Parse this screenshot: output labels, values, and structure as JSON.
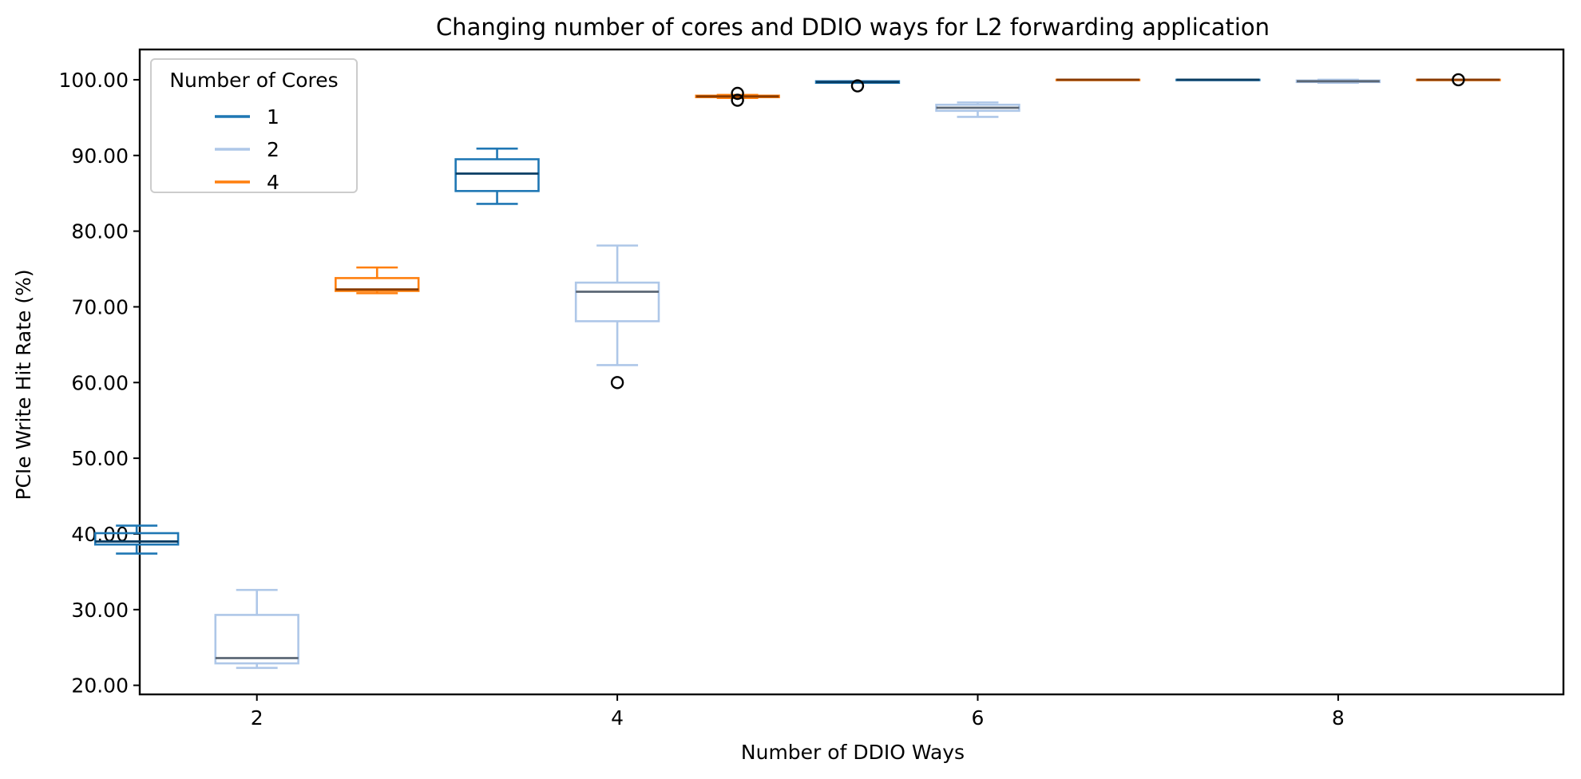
{
  "chart_data": {
    "type": "box",
    "title": "Changing number of cores and DDIO ways for L2 forwarding application",
    "xlabel": "Number of DDIO Ways",
    "ylabel": "PCIe Write Hit Rate (%)",
    "xlim": [
      1.35,
      9.25
    ],
    "ylim": [
      18.8,
      104.0
    ],
    "x_ticks": [
      "2",
      "4",
      "6",
      "8"
    ],
    "y_ticks": [
      "20.00",
      "30.00",
      "40.00",
      "50.00",
      "60.00",
      "70.00",
      "80.00",
      "90.00",
      "100.00"
    ],
    "legend": {
      "title": "Number of Cores",
      "position": "upper-left",
      "entries": [
        "1",
        "2",
        "4"
      ]
    },
    "series": [
      {
        "name": "1",
        "color": "#1f77b4",
        "median_color": "#0a3d63",
        "boxes": [
          {
            "x": 1.333,
            "whislo": 37.4,
            "q1": 38.6,
            "med": 39.0,
            "q3": 40.1,
            "whishi": 41.1,
            "fliers": []
          },
          {
            "x": 3.333,
            "whislo": 83.6,
            "q1": 85.3,
            "med": 87.6,
            "q3": 89.5,
            "whishi": 90.9,
            "fliers": []
          },
          {
            "x": 5.333,
            "whislo": 99.6,
            "q1": 99.6,
            "med": 99.7,
            "q3": 99.8,
            "whishi": 99.8,
            "fliers": [
              99.2
            ]
          },
          {
            "x": 7.333,
            "whislo": 100.0,
            "q1": 100.0,
            "med": 100.0,
            "q3": 100.0,
            "whishi": 100.0,
            "fliers": []
          }
        ]
      },
      {
        "name": "2",
        "color": "#aec7e8",
        "median_color": "#5b6775",
        "boxes": [
          {
            "x": 2.0,
            "whislo": 22.3,
            "q1": 22.9,
            "med": 23.6,
            "q3": 29.3,
            "whishi": 32.6,
            "fliers": []
          },
          {
            "x": 4.0,
            "whislo": 62.3,
            "q1": 68.1,
            "med": 72.0,
            "q3": 73.2,
            "whishi": 78.1,
            "fliers": [
              60.0
            ]
          },
          {
            "x": 6.0,
            "whislo": 95.1,
            "q1": 95.9,
            "med": 96.3,
            "q3": 96.7,
            "whishi": 97.0,
            "fliers": []
          },
          {
            "x": 8.0,
            "whislo": 99.6,
            "q1": 99.7,
            "med": 99.8,
            "q3": 99.9,
            "whishi": 100.0,
            "fliers": []
          }
        ]
      },
      {
        "name": "4",
        "color": "#ff7f0e",
        "median_color": "#8a3b00",
        "boxes": [
          {
            "x": 2.667,
            "whislo": 71.8,
            "q1": 72.1,
            "med": 72.3,
            "q3": 73.8,
            "whishi": 75.2,
            "fliers": []
          },
          {
            "x": 4.667,
            "whislo": 97.6,
            "q1": 97.7,
            "med": 97.8,
            "q3": 97.9,
            "whishi": 98.0,
            "fliers": [
              97.3,
              98.2
            ]
          },
          {
            "x": 6.667,
            "whislo": 100.0,
            "q1": 100.0,
            "med": 100.0,
            "q3": 100.0,
            "whishi": 100.0,
            "fliers": []
          },
          {
            "x": 8.667,
            "whislo": 100.0,
            "q1": 100.0,
            "med": 100.0,
            "q3": 100.0,
            "whishi": 100.0,
            "fliers": [
              100.0
            ]
          }
        ]
      }
    ]
  }
}
